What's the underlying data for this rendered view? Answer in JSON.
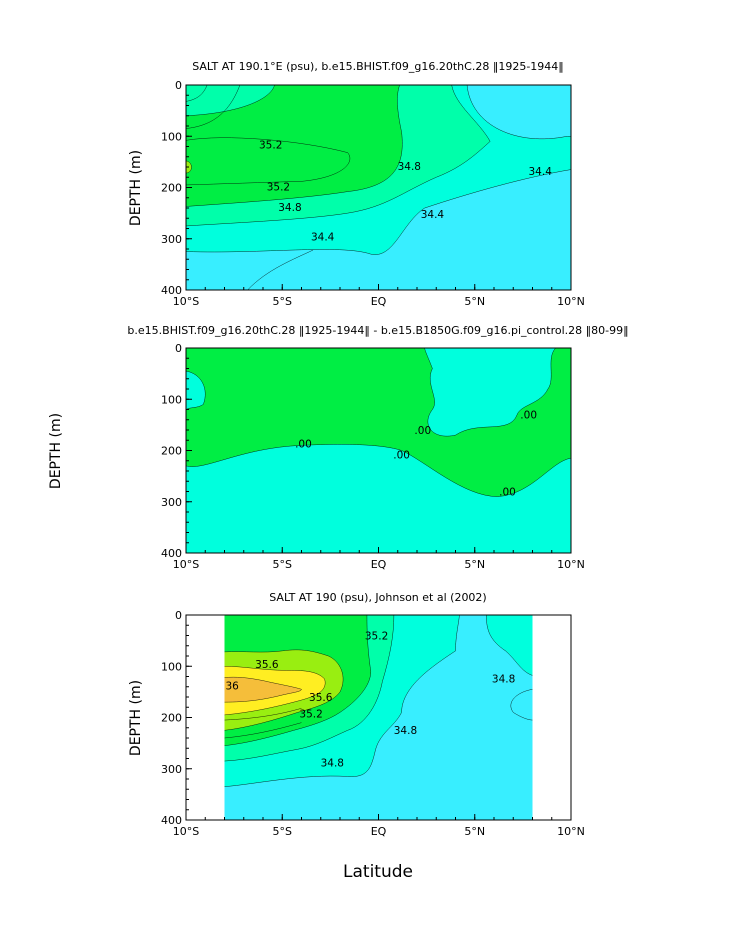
{
  "colors": {
    "cyan_light": "#38EEFF",
    "aqua": "#00FFDD",
    "aquamarine": "#00FFAA",
    "green": "#00EE44",
    "lime": "#99EE11",
    "yellow": "#FFEE22",
    "orange": "#F5BE3A",
    "line": "#000000",
    "background": "#FFFFFF"
  },
  "xlabel": "Latitude",
  "chart_data": [
    {
      "type": "contour",
      "title": "SALT AT 190.1°E (psu), b.e15.BHIST.f09_g16.20thC.28 ‖1925-1944‖",
      "ylabel": "DEPTH (m)",
      "x_ticks": [
        "10°S",
        "5°S",
        "EQ",
        "5°N",
        "10°N"
      ],
      "x_range": [
        -10,
        10
      ],
      "y_ticks": [
        "0",
        "100",
        "200",
        "300",
        "400"
      ],
      "y_range": [
        0,
        400
      ],
      "y_inverted": true,
      "contour_labels": [
        {
          "text": "35.2",
          "lat": -5.6,
          "depth": 116
        },
        {
          "text": "35.2",
          "lat": -5.2,
          "depth": 198
        },
        {
          "text": "34.8",
          "lat": -4.6,
          "depth": 238
        },
        {
          "text": "34.8",
          "lat": 1.6,
          "depth": 158
        },
        {
          "text": "34.4",
          "lat": 8.4,
          "depth": 168
        },
        {
          "text": "34.4",
          "lat": 2.8,
          "depth": 252
        },
        {
          "text": "34.4",
          "lat": -2.9,
          "depth": 296
        }
      ]
    },
    {
      "type": "contour",
      "title": "b.e15.BHIST.f09_g16.20thC.28 ‖1925-1944‖ - b.e15.B1850G.f09_g16.pi_control.28 ‖80-99‖",
      "ylabel": "DEPTH (m)",
      "x_ticks": [
        "10°S",
        "5°S",
        "EQ",
        "5°N",
        "10°N"
      ],
      "x_range": [
        -10,
        10
      ],
      "y_ticks": [
        "0",
        "100",
        "200",
        "300",
        "400"
      ],
      "y_range": [
        0,
        400
      ],
      "y_inverted": true,
      "contour_labels": [
        {
          "text": ".00",
          "lat": -3.9,
          "depth": 186
        },
        {
          "text": ".00",
          "lat": 2.3,
          "depth": 160
        },
        {
          "text": ".00",
          "lat": 1.2,
          "depth": 208
        },
        {
          "text": ".00",
          "lat": 7.8,
          "depth": 130
        },
        {
          "text": ".00",
          "lat": 6.7,
          "depth": 280
        }
      ]
    },
    {
      "type": "contour",
      "title": "SALT AT 190 (psu), Johnson et al (2002)",
      "ylabel": "DEPTH (m)",
      "xlabel": "Latitude",
      "x_ticks": [
        "10°S",
        "5°S",
        "EQ",
        "5°N",
        "10°N"
      ],
      "x_range": [
        -10,
        10
      ],
      "data_lat_range": [
        -8,
        8
      ],
      "y_ticks": [
        "0",
        "100",
        "200",
        "300",
        "400"
      ],
      "y_range": [
        0,
        400
      ],
      "y_inverted": true,
      "contour_labels": [
        {
          "text": "35.2",
          "lat": -0.1,
          "depth": 40
        },
        {
          "text": "35.6",
          "lat": -5.8,
          "depth": 96
        },
        {
          "text": "36",
          "lat": -7.6,
          "depth": 138
        },
        {
          "text": "35.6",
          "lat": -3.0,
          "depth": 160
        },
        {
          "text": "35.2",
          "lat": -3.5,
          "depth": 192
        },
        {
          "text": "34.8",
          "lat": 1.4,
          "depth": 224
        },
        {
          "text": "34.8",
          "lat": 6.5,
          "depth": 124
        },
        {
          "text": "34.8",
          "lat": -2.4,
          "depth": 288
        }
      ]
    }
  ]
}
